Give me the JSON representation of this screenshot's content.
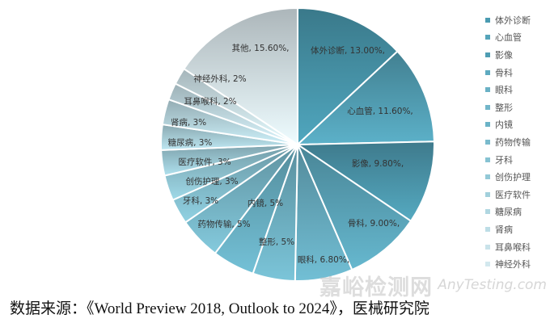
{
  "chart_data": {
    "type": "pie",
    "title": "",
    "start": "top, clockwise",
    "legend_position": "right",
    "slices": [
      {
        "label": "体外诊断",
        "value": 13.0,
        "text": "体外诊断, 13.00%,",
        "color": "#4a9bb1"
      },
      {
        "label": "心血管",
        "value": 11.6,
        "text": "心血管, 11.60%,",
        "color": "#55a4ba"
      },
      {
        "label": "影像",
        "value": 9.8,
        "text": "影像, 9.80%,",
        "color": "#4f9db3"
      },
      {
        "label": "骨科",
        "value": 9.0,
        "text": "骨科, 9.00%,",
        "color": "#5eaac0"
      },
      {
        "label": "眼科",
        "value": 6.8,
        "text": "眼科, 6.80%,",
        "color": "#6ab1c5"
      },
      {
        "label": "整形",
        "value": 5,
        "text": "整形, 5%",
        "color": "#72b6c9"
      },
      {
        "label": "内镜",
        "value": 5,
        "text": "内镜, 5%",
        "color": "#6bb3c7"
      },
      {
        "label": "药物传输",
        "value": 5,
        "text": "药物传输, 5%",
        "color": "#7abbcd"
      },
      {
        "label": "牙科",
        "value": 3,
        "text": "牙科, 3%",
        "color": "#86c2d2"
      },
      {
        "label": "创伤护理",
        "value": 3,
        "text": "创伤护理, 3%",
        "color": "#93c9d7"
      },
      {
        "label": "医疗软件",
        "value": 3,
        "text": "医疗软件, 3%",
        "color": "#a2d0dc"
      },
      {
        "label": "糖尿病",
        "value": 3,
        "text": "糖尿病, 3%",
        "color": "#b0d7e1"
      },
      {
        "label": "肾病",
        "value": 3,
        "text": "肾病, 3%",
        "color": "#bddde6"
      },
      {
        "label": "耳鼻喉科",
        "value": 2,
        "text": "耳鼻喉科, 2%",
        "color": "#c9e3ea"
      },
      {
        "label": "神经外科",
        "value": 2,
        "text": "神经外科, 2%",
        "color": "#d3e8ee"
      },
      {
        "label": "其他",
        "value": 15.6,
        "text": "其他, 15.60%,",
        "color": "#dce9ef"
      }
    ],
    "legend": [
      "体外诊断",
      "心血管",
      "影像",
      "骨科",
      "眼科",
      "整形",
      "内镜",
      "药物传输",
      "牙科",
      "创伤护理",
      "医疗软件",
      "糖尿病",
      "肾病",
      "耳鼻喉科",
      "神经外科"
    ]
  },
  "source": "数据来源：《World Preview 2018, Outlook to 2024》，医械研究院",
  "watermark": {
    "cn": "嘉峪检测网",
    "en": "AnyTesting.com"
  }
}
